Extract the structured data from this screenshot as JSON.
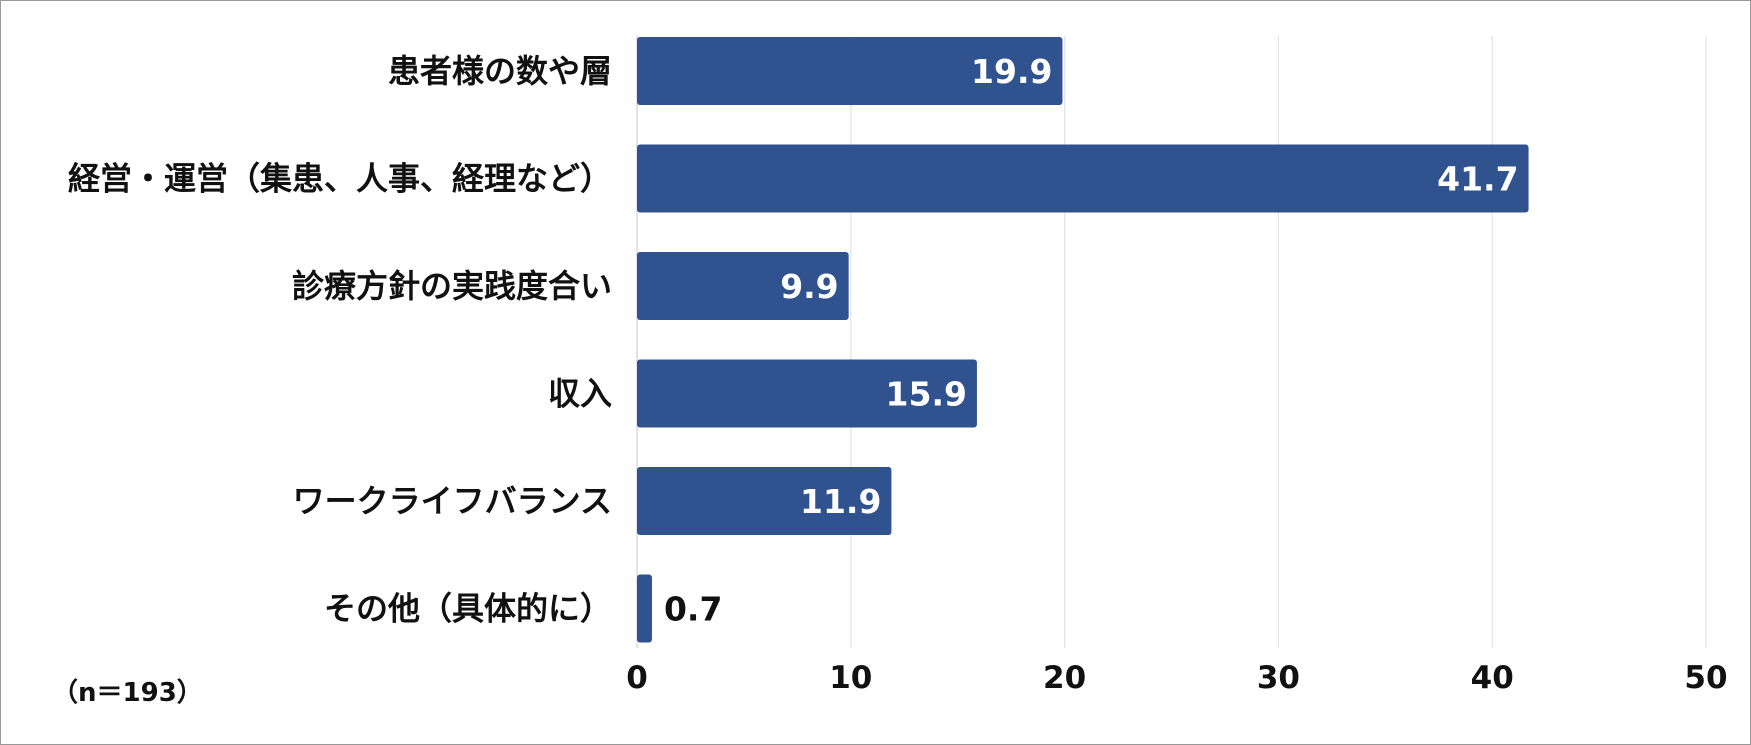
{
  "chart_data": {
    "type": "bar",
    "orientation": "horizontal",
    "categories": [
      "患者様の数や層",
      "経営・運営（集患、人事、経理など）",
      "診療方針の実践度合い",
      "収入",
      "ワークライフバランス",
      "その他（具体的に）"
    ],
    "values": [
      19.9,
      41.7,
      9.9,
      15.9,
      11.9,
      0.7
    ],
    "value_labels": [
      "19.9",
      "41.7",
      "9.9",
      "15.9",
      "11.9",
      "0.7"
    ],
    "xlim": [
      0,
      50
    ],
    "xticks": [
      0,
      10,
      20,
      30,
      40,
      50
    ],
    "grid": true,
    "bar_color": "#30528f",
    "label_color_inside": "#ffffff",
    "label_color_outside": "#111111"
  },
  "note": "（n＝193）"
}
